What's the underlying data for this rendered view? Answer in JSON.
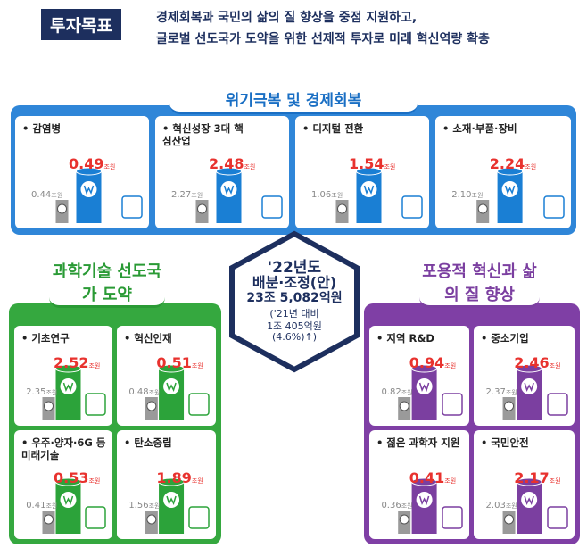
{
  "header": {
    "badge": "투자목표",
    "lines": [
      "경제회복과 국민의 삶의 질 향상을 중점 지원하고,",
      "글로벌 선도국가 도약을 위한 선제적 투자로 미래 혁신역량 확충"
    ]
  },
  "center": {
    "lines": [
      "'22년도",
      "배분·조정(안)",
      "23조 5,082억원",
      "('21년 대비",
      "1조 405억원",
      "(4.6%)↑)"
    ]
  },
  "unit": "조원",
  "sections": [
    {
      "title": "위기극복 및 경제회복",
      "items": [
        {
          "label": "감염병",
          "current": "0.49",
          "previous": "0.44"
        },
        {
          "label": "혁신성장 3대 핵심산업",
          "current": "2.48",
          "previous": "2.27"
        },
        {
          "label": "디지털 전환",
          "current": "1.54",
          "previous": "1.06"
        },
        {
          "label": "소재·부품·장비",
          "current": "2.24",
          "previous": "2.10"
        }
      ]
    },
    {
      "title": "과학기술 선도국가 도약",
      "items": [
        {
          "label": "기초연구",
          "current": "2.52",
          "previous": "2.35"
        },
        {
          "label": "혁신인재",
          "current": "0.51",
          "previous": "0.48"
        },
        {
          "label": "우주·양자·6G 등 미래기술",
          "current": "0.53",
          "previous": "0.41"
        },
        {
          "label": "탄소중립",
          "current": "1.89",
          "previous": "1.56"
        }
      ]
    },
    {
      "title": "포용적 혁신과 삶의 질 향상",
      "items": [
        {
          "label": "지역 R&D",
          "current": "0.94",
          "previous": "0.82"
        },
        {
          "label": "중소기업",
          "current": "2.46",
          "previous": "2.37"
        },
        {
          "label": "젊은 과학자 지원",
          "current": "0.41",
          "previous": "0.36"
        },
        {
          "label": "국민안전",
          "current": "2.17",
          "previous": "2.03"
        }
      ]
    }
  ]
}
